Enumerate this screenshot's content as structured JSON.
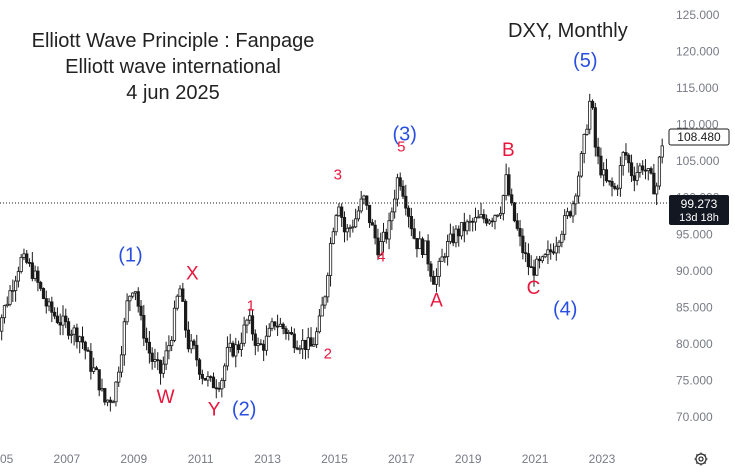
{
  "header": {
    "line1": "Elliott Wave Principle : Fanpage",
    "line2": "Elliott wave international",
    "line3": "4 jun 2025",
    "symbol": "DXY, Monthly"
  },
  "price_tags": {
    "last": "108.480",
    "ref": "99.273",
    "countdown": "13d 18h"
  },
  "colors": {
    "blue_wave": "#2a4fe0",
    "red_wave": "#e8163c",
    "candle": "#1a1a1a",
    "axis_text": "#787b86"
  },
  "icons": {
    "settings": "gear-icon"
  },
  "chart_data": {
    "type": "line",
    "title": "DXY, Monthly",
    "xlabel": "",
    "ylabel": "",
    "xlim": [
      2004.8,
      2025.6
    ],
    "ylim": [
      67,
      126
    ],
    "grid": false,
    "reference_line": 99.273,
    "last_price": 108.48,
    "x_ticks": [
      "05",
      "2007",
      "2009",
      "2011",
      "2013",
      "2015",
      "2017",
      "2019",
      "2021",
      "2023"
    ],
    "x_tick_values": [
      2005,
      2007,
      2009,
      2011,
      2013,
      2015,
      2017,
      2019,
      2021,
      2023
    ],
    "y_ticks": [
      "70.000",
      "75.000",
      "80.000",
      "85.000",
      "90.000",
      "95.000",
      "100.000",
      "105.000",
      "110.000",
      "115.000",
      "120.000",
      "125.000"
    ],
    "y_tick_values": [
      70,
      75,
      80,
      85,
      90,
      95,
      100,
      105,
      110,
      115,
      120,
      125
    ],
    "series": [
      {
        "values": [
          [
            2004.8,
            81
          ],
          [
            2005.0,
            82
          ],
          [
            2005.3,
            86
          ],
          [
            2005.7,
            91.5
          ],
          [
            2005.9,
            91
          ],
          [
            2006.1,
            89.5
          ],
          [
            2006.5,
            85
          ],
          [
            2006.9,
            83
          ],
          [
            2007.2,
            82
          ],
          [
            2007.5,
            81
          ],
          [
            2007.8,
            77
          ],
          [
            2008.0,
            75.5
          ],
          [
            2008.2,
            72
          ],
          [
            2008.5,
            73
          ],
          [
            2008.7,
            79
          ],
          [
            2008.9,
            86
          ],
          [
            2009.1,
            88.5
          ],
          [
            2009.3,
            83
          ],
          [
            2009.6,
            78
          ],
          [
            2009.9,
            76
          ],
          [
            2010.2,
            81
          ],
          [
            2010.45,
            88
          ],
          [
            2010.7,
            80
          ],
          [
            2010.9,
            79
          ],
          [
            2011.1,
            76
          ],
          [
            2011.4,
            74.5
          ],
          [
            2011.7,
            75
          ],
          [
            2011.9,
            79
          ],
          [
            2012.2,
            79.5
          ],
          [
            2012.5,
            83.5
          ],
          [
            2012.8,
            79.5
          ],
          [
            2013.0,
            80
          ],
          [
            2013.3,
            83
          ],
          [
            2013.6,
            82
          ],
          [
            2013.9,
            80.5
          ],
          [
            2014.2,
            80
          ],
          [
            2014.4,
            79.5
          ],
          [
            2014.6,
            82
          ],
          [
            2014.8,
            87
          ],
          [
            2015.0,
            95
          ],
          [
            2015.2,
            100
          ],
          [
            2015.4,
            95
          ],
          [
            2015.7,
            97
          ],
          [
            2015.95,
            100
          ],
          [
            2016.2,
            96
          ],
          [
            2016.4,
            93
          ],
          [
            2016.7,
            95.5
          ],
          [
            2016.9,
            101
          ],
          [
            2017.0,
            103.3
          ],
          [
            2017.2,
            100
          ],
          [
            2017.5,
            94
          ],
          [
            2017.8,
            93
          ],
          [
            2018.0,
            89.5
          ],
          [
            2018.1,
            88.6
          ],
          [
            2018.4,
            93
          ],
          [
            2018.7,
            95
          ],
          [
            2019.0,
            96
          ],
          [
            2019.4,
            97
          ],
          [
            2019.8,
            97.5
          ],
          [
            2020.1,
            99
          ],
          [
            2020.2,
            102.8
          ],
          [
            2020.4,
            98
          ],
          [
            2020.7,
            93
          ],
          [
            2020.95,
            90
          ],
          [
            2021.3,
            91
          ],
          [
            2021.6,
            93
          ],
          [
            2021.9,
            96
          ],
          [
            2022.2,
            99
          ],
          [
            2022.5,
            106
          ],
          [
            2022.75,
            114.1
          ],
          [
            2022.9,
            106
          ],
          [
            2023.2,
            102
          ],
          [
            2023.5,
            101
          ],
          [
            2023.75,
            106.5
          ],
          [
            2024.0,
            103
          ],
          [
            2024.3,
            104.5
          ],
          [
            2024.7,
            101
          ],
          [
            2024.85,
            107
          ],
          [
            2025.0,
            109.5
          ],
          [
            2025.2,
            104
          ],
          [
            2025.4,
            99.5
          ],
          [
            2025.5,
            99
          ]
        ]
      }
    ],
    "annotations": [
      {
        "text": "(1)",
        "x": 2008.9,
        "y": 91.3,
        "color": "blue"
      },
      {
        "text": "(2)",
        "x": 2012.3,
        "y": 70.2,
        "color": "blue"
      },
      {
        "text": "(3)",
        "x": 2017.1,
        "y": 107.8,
        "color": "blue"
      },
      {
        "text": "(4)",
        "x": 2021.9,
        "y": 83.9,
        "color": "blue"
      },
      {
        "text": "(5)",
        "x": 2022.5,
        "y": 117.9,
        "color": "blue"
      },
      {
        "text": "X",
        "x": 2010.75,
        "y": 88.8,
        "color": "red"
      },
      {
        "text": "W",
        "x": 2009.95,
        "y": 71.9,
        "color": "red"
      },
      {
        "text": "Y",
        "x": 2011.4,
        "y": 70.2,
        "color": "red"
      },
      {
        "text": "1",
        "x": 2012.5,
        "y": 84.6,
        "color": "red"
      },
      {
        "text": "2",
        "x": 2014.8,
        "y": 78.0,
        "color": "red"
      },
      {
        "text": "3",
        "x": 2015.1,
        "y": 102.5,
        "color": "red"
      },
      {
        "text": "4",
        "x": 2016.4,
        "y": 91.3,
        "color": "red"
      },
      {
        "text": "5",
        "x": 2017.0,
        "y": 106.3,
        "color": "red"
      },
      {
        "text": "A",
        "x": 2018.05,
        "y": 85.1,
        "color": "red"
      },
      {
        "text": "B",
        "x": 2020.2,
        "y": 105.7,
        "color": "red"
      },
      {
        "text": "C",
        "x": 2020.95,
        "y": 86.8,
        "color": "red"
      }
    ]
  }
}
